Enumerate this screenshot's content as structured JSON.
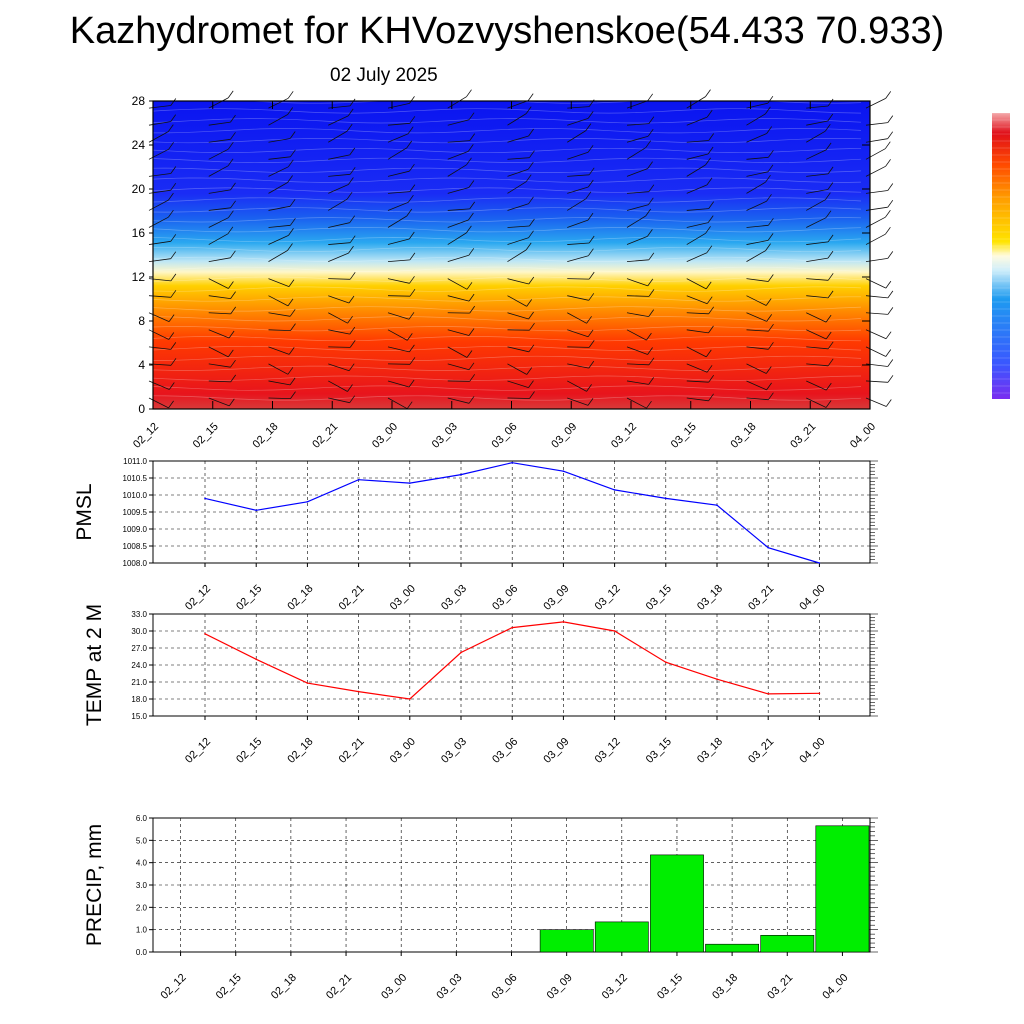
{
  "header": {
    "title": "Kazhydromet for KHVozvyshenskoe(54.433 70.933)",
    "date": "02 July 2025"
  },
  "colors": {
    "pressure_line": "#0000ff",
    "temp_line": "#ff0000",
    "precip_bar": "#00ee00",
    "grid": "#000000"
  },
  "chart_data": [
    {
      "type": "heatmap",
      "name": "cross-section",
      "title": "",
      "xlabel": "",
      "ylabel": "",
      "x_ticks": [
        "02_12",
        "02_15",
        "02_18",
        "02_21",
        "03_00",
        "03_03",
        "03_06",
        "03_09",
        "03_12",
        "03_15",
        "03_18",
        "03_21",
        "04_00"
      ],
      "y_ticks": [
        "0",
        "4",
        "8",
        "12",
        "16",
        "20",
        "24",
        "28"
      ],
      "ylim": [
        0,
        28
      ],
      "colorbar": "blue-violet (low) to red (high)",
      "colormap_stops": [
        "#7a2df0",
        "#3a56ff",
        "#1e9bf0",
        "#9edcf5",
        "#fffbe0",
        "#ffe400",
        "#ff9e00",
        "#ff4a00",
        "#e0101a",
        "#f4a8aa"
      ]
    },
    {
      "type": "line",
      "ylabel": "PMSL",
      "x": [
        "02_12",
        "02_15",
        "02_18",
        "02_21",
        "03_00",
        "03_03",
        "03_06",
        "03_09",
        "03_12",
        "03_15",
        "03_18",
        "03_21",
        "04_00"
      ],
      "values": [
        1009.9,
        1009.55,
        1009.8,
        1010.45,
        1010.35,
        1010.6,
        1010.95,
        1010.7,
        1010.15,
        1009.9,
        1009.7,
        1008.45,
        1008.0
      ],
      "ylim": [
        1008.0,
        1011.0
      ],
      "y_ticks": [
        "1008.0",
        "1008.5",
        "1009.0",
        "1009.5",
        "1010.0",
        "1010.5",
        "1011.0"
      ],
      "grid": true
    },
    {
      "type": "line",
      "ylabel": "TEMP at 2 M",
      "x": [
        "02_12",
        "02_15",
        "02_18",
        "02_21",
        "03_00",
        "03_03",
        "03_06",
        "03_09",
        "03_12",
        "03_15",
        "03_18",
        "03_21",
        "04_00"
      ],
      "values": [
        29.5,
        25.0,
        20.8,
        19.3,
        18.0,
        26.2,
        30.6,
        31.6,
        30.0,
        24.5,
        21.5,
        18.9,
        19.0
      ],
      "ylim": [
        15.0,
        33.0
      ],
      "y_ticks": [
        "15.0",
        "18.0",
        "21.0",
        "24.0",
        "27.0",
        "30.0",
        "33.0"
      ],
      "grid": true
    },
    {
      "type": "bar",
      "ylabel": "PRECIP, mm",
      "categories": [
        "02_12",
        "02_15",
        "02_18",
        "02_21",
        "03_00",
        "03_03",
        "03_06",
        "03_09",
        "03_12",
        "03_15",
        "03_18",
        "03_21",
        "04_00"
      ],
      "values": [
        0,
        0,
        0,
        0,
        0,
        0,
        0,
        1.0,
        1.35,
        4.35,
        0.35,
        0.75,
        5.65
      ],
      "ylim": [
        0.0,
        6.0
      ],
      "y_ticks": [
        "0.0",
        "1.0",
        "2.0",
        "3.0",
        "4.0",
        "5.0",
        "6.0"
      ],
      "grid": true
    }
  ]
}
